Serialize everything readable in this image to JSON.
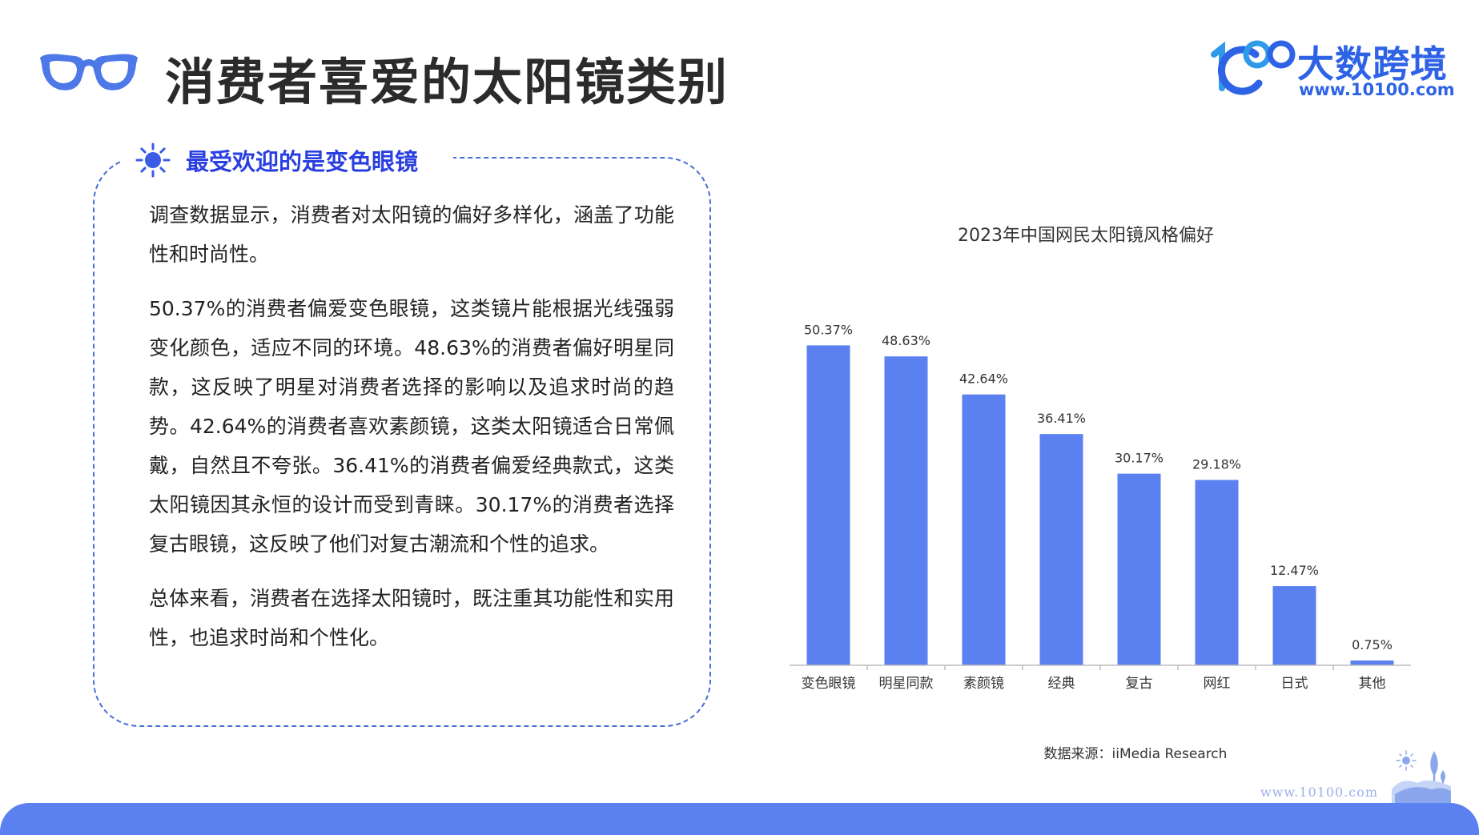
{
  "header": {
    "title": "消费者喜爱的太阳镜类别",
    "logo_icon": "glasses-icon",
    "brand_name": "大数跨境",
    "brand_url": "www.10100.com"
  },
  "panel": {
    "heading_icon": "sun-icon",
    "heading": "最受欢迎的是变色眼镜",
    "paragraphs": [
      "调查数据显示，消费者对太阳镜的偏好多样化，涵盖了功能性和时尚性。",
      "50.37%的消费者偏爱变色眼镜，这类镜片能根据光线强弱变化颜色，适应不同的环境。48.63%的消费者偏好明星同款，这反映了明星对消费者选择的影响以及追求时尚的趋势。42.64%的消费者喜欢素颜镜，这类太阳镜适合日常佩戴，自然且不夸张。36.41%的消费者偏爱经典款式，这类太阳镜因其永恒的设计而受到青睐。30.17%的消费者选择复古眼镜，这反映了他们对复古潮流和个性的追求。",
      "总体来看，消费者在选择太阳镜时，既注重其功能性和实用性，也追求时尚和个性化。"
    ]
  },
  "chart_data": {
    "type": "bar",
    "title": "2023年中国网民太阳镜风格偏好",
    "categories": [
      "变色眼镜",
      "明星同款",
      "素颜镜",
      "经典",
      "复古",
      "网红",
      "日式",
      "其他"
    ],
    "values": [
      50.37,
      48.63,
      42.64,
      36.41,
      30.17,
      29.18,
      12.47,
      0.75
    ],
    "value_labels": [
      "50.37%",
      "48.63%",
      "42.64%",
      "36.41%",
      "30.17%",
      "29.18%",
      "12.47%",
      "0.75%"
    ],
    "ylim": [
      0,
      60
    ],
    "grid": false,
    "legend": "none",
    "xlabel": "",
    "ylabel": "",
    "bar_color": "#5b80f0",
    "source": "数据来源：iiMedia Research"
  },
  "footer": {
    "url": "www.10100.com",
    "accent_color": "#5b80f0"
  },
  "colors": {
    "accent": "#2f63e6",
    "heading": "#2a3fe0",
    "border": "#4a6fd6"
  }
}
